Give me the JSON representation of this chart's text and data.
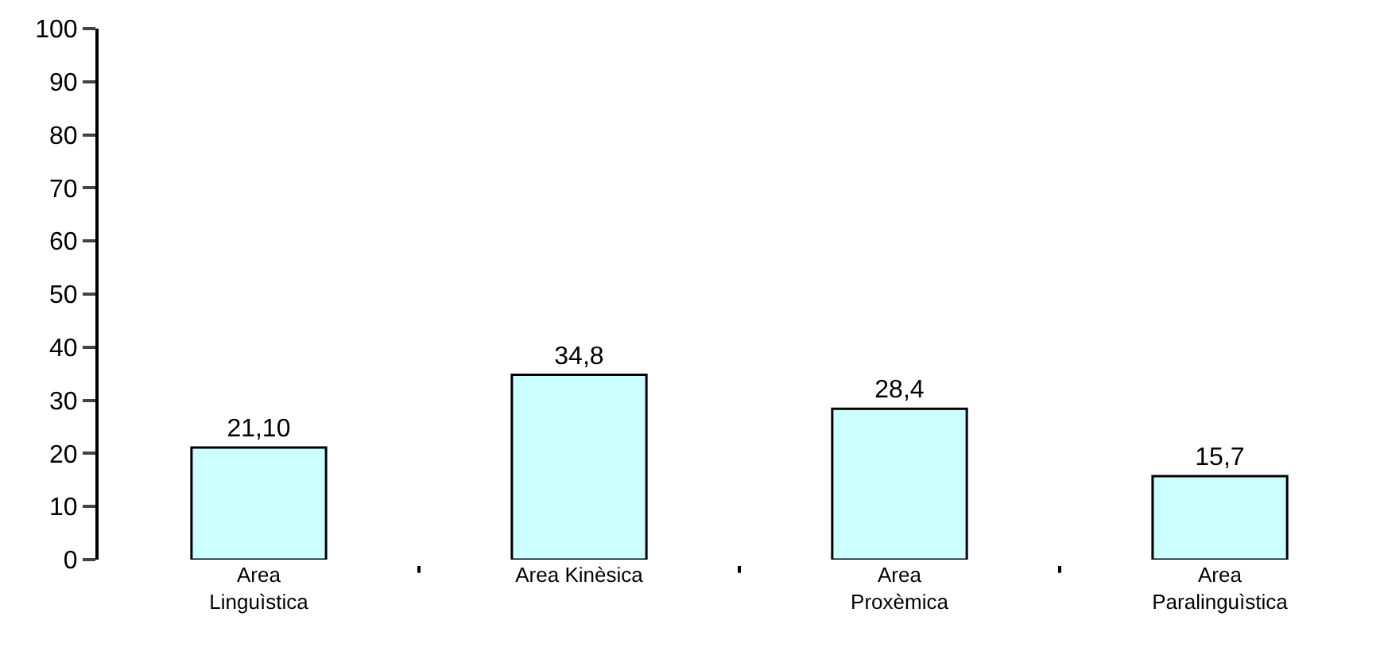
{
  "chart_data": {
    "type": "bar",
    "categories": [
      "Area\nLinguìstica",
      "Area Kinèsica",
      "Area\nProxèmica",
      "Area\nParalinguìstica"
    ],
    "values": [
      21.1,
      34.8,
      28.4,
      15.7
    ],
    "value_labels": [
      "21,10",
      "34,8",
      "28,4",
      "15,7"
    ],
    "color": "#ccffff",
    "ylim": [
      0,
      100
    ],
    "yticks": [
      0,
      10,
      20,
      30,
      40,
      50,
      60,
      70,
      80,
      90,
      100
    ]
  }
}
